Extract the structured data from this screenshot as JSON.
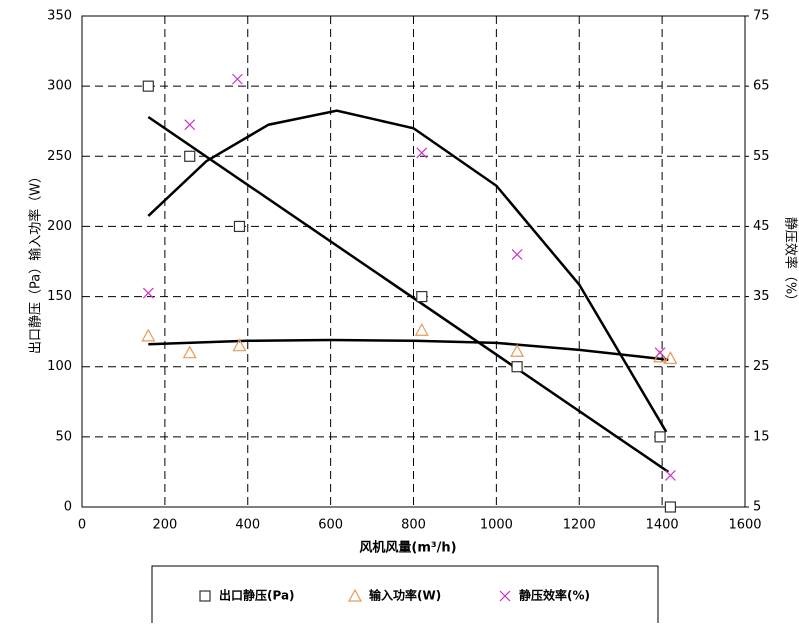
{
  "chart_data": {
    "type": "scatter",
    "x_label": "风机风量(m³/h)",
    "y_label": "出口静压（Pa）输入功率（W）",
    "y2_label": "静压效率（%）",
    "xlim": [
      0,
      1600
    ],
    "xticks": [
      0,
      200,
      400,
      600,
      800,
      1000,
      1200,
      1400,
      1600
    ],
    "ylim": [
      0,
      350
    ],
    "yticks": [
      0,
      50,
      100,
      150,
      200,
      250,
      300,
      350
    ],
    "y2lim": [
      5,
      75
    ],
    "y2ticks": [
      5,
      15,
      25,
      35,
      45,
      55,
      65,
      75
    ],
    "grid": true,
    "legend": "bottom",
    "series": [
      {
        "name": "出口静压(Pa)",
        "color": "#333333",
        "marker": "square",
        "x": [
          160,
          260,
          380,
          820,
          1050,
          1395,
          1420
        ],
        "values": [
          300,
          250,
          200,
          150,
          100,
          50,
          0
        ]
      },
      {
        "name": "输入功率(W)",
        "color": "#e69a5a",
        "marker": "triangle",
        "x": [
          160,
          260,
          380,
          820,
          1050,
          1395,
          1420
        ],
        "values": [
          122,
          110,
          115,
          126,
          111,
          107,
          106
        ]
      },
      {
        "name": "静压效率(%)",
        "color": "#cc33cc",
        "marker": "cross",
        "axis": "y2",
        "x": [
          160,
          260,
          375,
          820,
          1050,
          1395,
          1420
        ],
        "values": [
          35.5,
          59.5,
          66,
          55.5,
          41,
          27,
          9.5
        ]
      }
    ],
    "trendlines": [
      {
        "x": [
          160,
          1415
        ],
        "values": [
          278,
          25
        ]
      },
      {
        "x": [
          160,
          400,
          600,
          800,
          1000,
          1200,
          1415
        ],
        "values": [
          116,
          118.5,
          119,
          118.5,
          117,
          112,
          105
        ]
      },
      {
        "axis": "y2",
        "x": [
          160,
          300,
          450,
          615,
          800,
          1000,
          1200,
          1410
        ],
        "values": [
          46.5,
          54.3,
          59.5,
          61.5,
          59,
          50.8,
          36.7,
          15.7
        ]
      }
    ]
  }
}
